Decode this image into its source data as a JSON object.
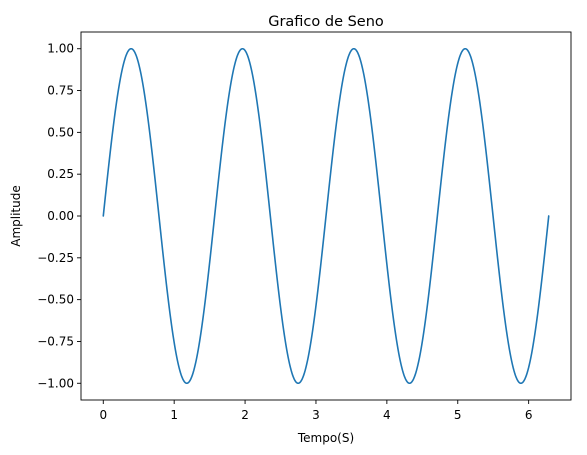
{
  "chart_data": {
    "type": "line",
    "title": "Grafico de Seno",
    "xlabel": "Tempo(S)",
    "ylabel": "Amplitude",
    "xlim": [
      -0.3142,
      6.5973
    ],
    "ylim": [
      -1.1,
      1.1
    ],
    "xticks": [
      0,
      1,
      2,
      3,
      4,
      5,
      6
    ],
    "xtick_labels": [
      "0",
      "1",
      "2",
      "3",
      "4",
      "5",
      "6"
    ],
    "yticks": [
      -1.0,
      -0.75,
      -0.5,
      -0.25,
      0.0,
      0.25,
      0.5,
      0.75,
      1.0
    ],
    "ytick_labels": [
      "−1.00",
      "−0.75",
      "−0.50",
      "−0.25",
      "0.00",
      "0.25",
      "0.50",
      "0.75",
      "1.00"
    ],
    "grid": false,
    "series": [
      {
        "function": "sin(4x)",
        "x_range": [
          0,
          6.2832
        ],
        "color": "#1f77b4"
      }
    ]
  }
}
